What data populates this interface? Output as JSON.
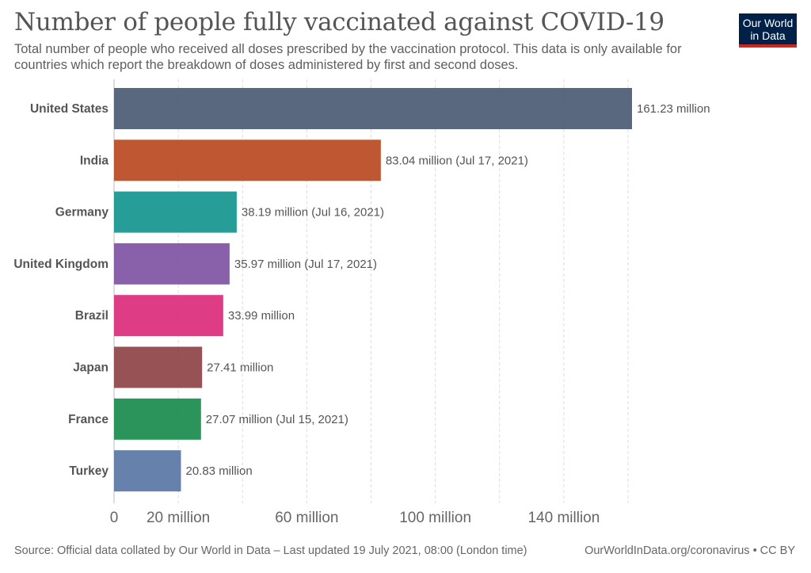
{
  "header": {
    "title": "Number of people fully vaccinated against COVID-19",
    "subtitle": "Total number of people who received all doses prescribed by the vaccination protocol. This data is only available for countries which report the breakdown of doses administered by first and second doses."
  },
  "logo": {
    "line1": "Our World",
    "line2": "in Data",
    "bg_color": "#002147",
    "accent_color": "#ce261e"
  },
  "footer": {
    "source": "Source: Official data collated by Our World in Data – Last updated 19 July 2021, 08:00 (London time)",
    "credit": "OurWorldInData.org/coronavirus • CC BY"
  },
  "chart_data": {
    "type": "bar",
    "orientation": "horizontal",
    "title": "Number of people fully vaccinated against COVID-19",
    "categories": [
      "United States",
      "India",
      "Germany",
      "United Kingdom",
      "Brazil",
      "Japan",
      "France",
      "Turkey"
    ],
    "values": [
      161230000,
      83040000,
      38190000,
      35970000,
      33990000,
      27410000,
      27070000,
      20830000
    ],
    "value_labels": [
      "161.23 million",
      "83.04 million (Jul 17, 2021)",
      "38.19 million (Jul 16, 2021)",
      "35.97 million (Jul 17, 2021)",
      "33.99 million",
      "27.41 million",
      "27.07 million (Jul 15, 2021)",
      "20.83 million"
    ],
    "colors": [
      "#4c5c75",
      "#b94a22",
      "#16968f",
      "#7f55a4",
      "#db2d7b",
      "#8e4548",
      "#1a8c4f",
      "#5a78a6"
    ],
    "xlim": [
      0,
      161230000
    ],
    "gridlines": [
      0,
      20000000,
      40000000,
      60000000,
      80000000,
      100000000,
      120000000,
      140000000,
      160000000
    ],
    "xticks": [
      {
        "value": 0,
        "label": "0"
      },
      {
        "value": 20000000,
        "label": "20 million"
      },
      {
        "value": 60000000,
        "label": "60 million"
      },
      {
        "value": 100000000,
        "label": "100 million"
      },
      {
        "value": 140000000,
        "label": "140 million"
      }
    ],
    "grid": true
  }
}
